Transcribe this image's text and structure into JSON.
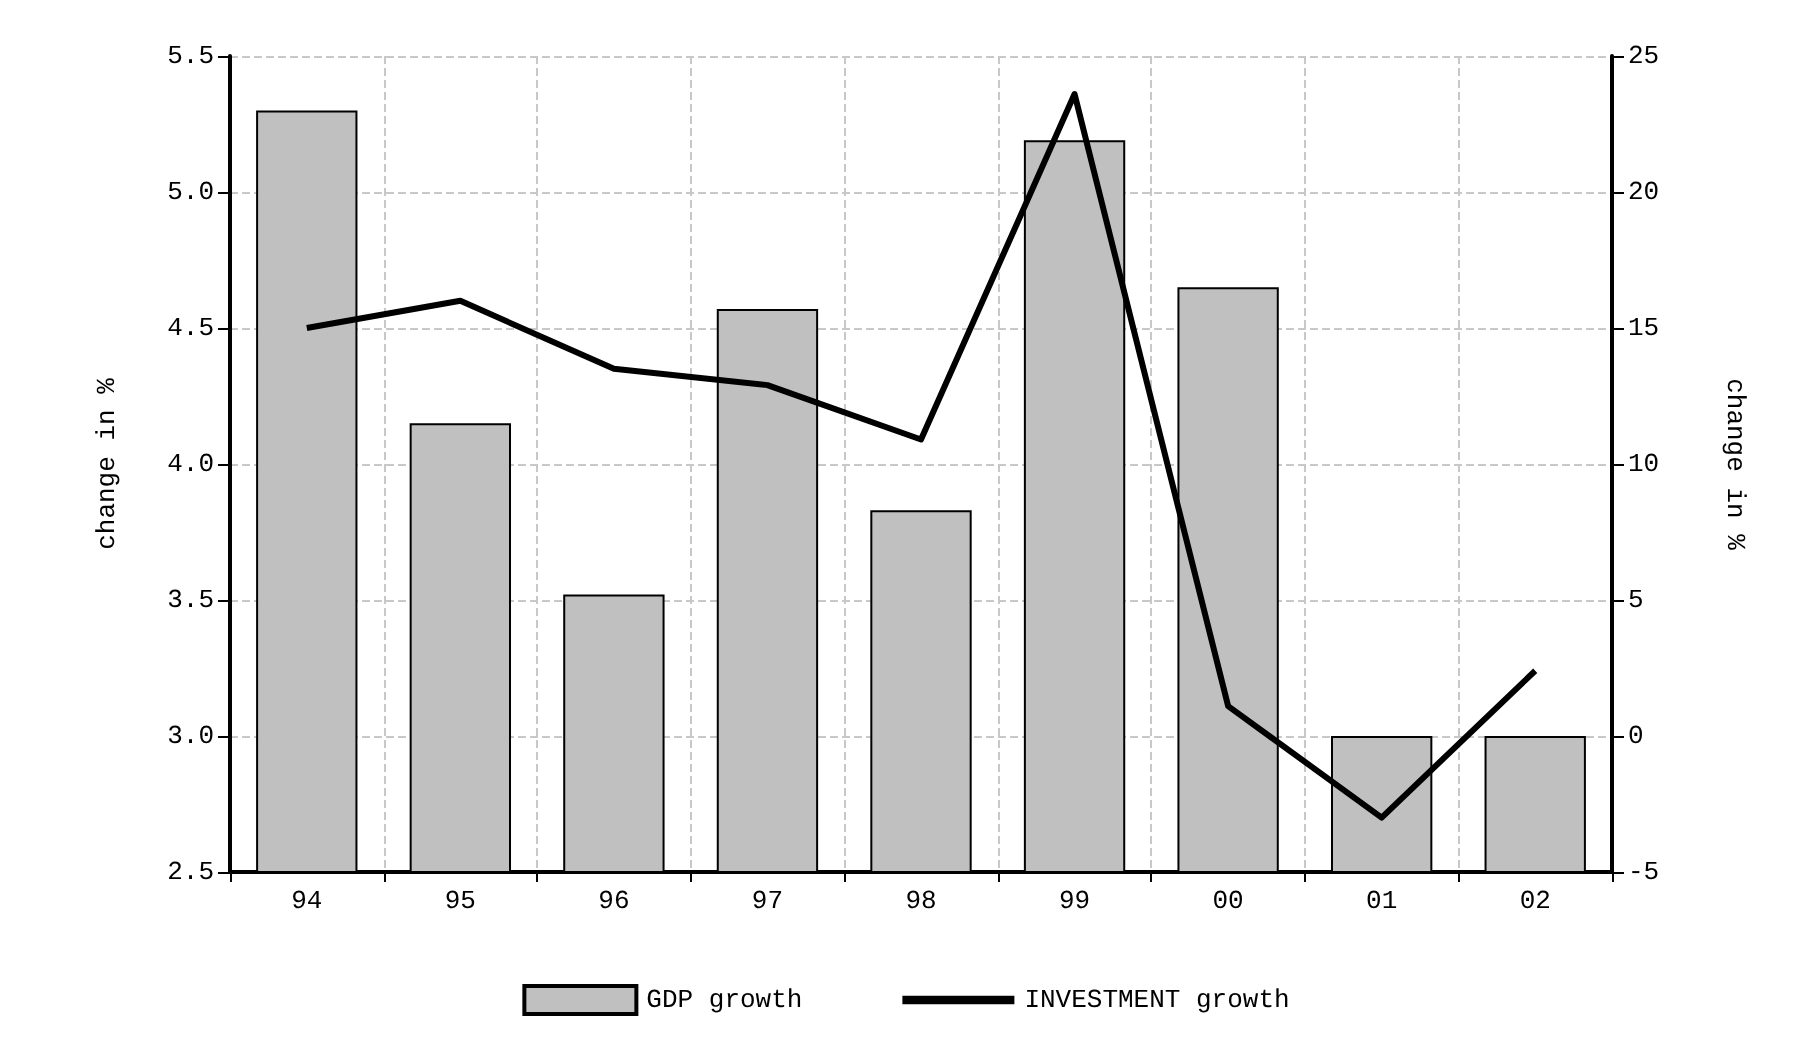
{
  "chart_data": {
    "type": "bar",
    "categories": [
      "94",
      "95",
      "96",
      "97",
      "98",
      "99",
      "00",
      "01",
      "02"
    ],
    "series": [
      {
        "name": "GDP growth",
        "color": "#c0c0c0",
        "values": [
          5.3,
          4.15,
          3.52,
          4.57,
          3.83,
          5.19,
          4.65,
          3.0,
          3.0
        ]
      },
      {
        "name": "INVESTMENT growth",
        "type": "line",
        "axis": "y2",
        "color": "#000000",
        "values": [
          15.0,
          16.0,
          13.5,
          12.9,
          10.9,
          23.6,
          1.1,
          -3.0,
          2.4
        ]
      }
    ],
    "ylabel": "change in %",
    "y2label": "change in %",
    "ylim": [
      2.5,
      5.5
    ],
    "yticks": [
      2.5,
      {
        "value": 3,
        "label": "3.0"
      },
      3.5,
      {
        "value": 4,
        "label": "4.0"
      },
      4.5,
      {
        "value": 5,
        "label": "5.0"
      },
      5.5
    ],
    "y2lim": [
      -5,
      25
    ],
    "y2ticks": [
      -5,
      0,
      5,
      10,
      15,
      20,
      25
    ],
    "grid": true,
    "legend": "bottom",
    "marker": "none",
    "line_style": "solid"
  }
}
